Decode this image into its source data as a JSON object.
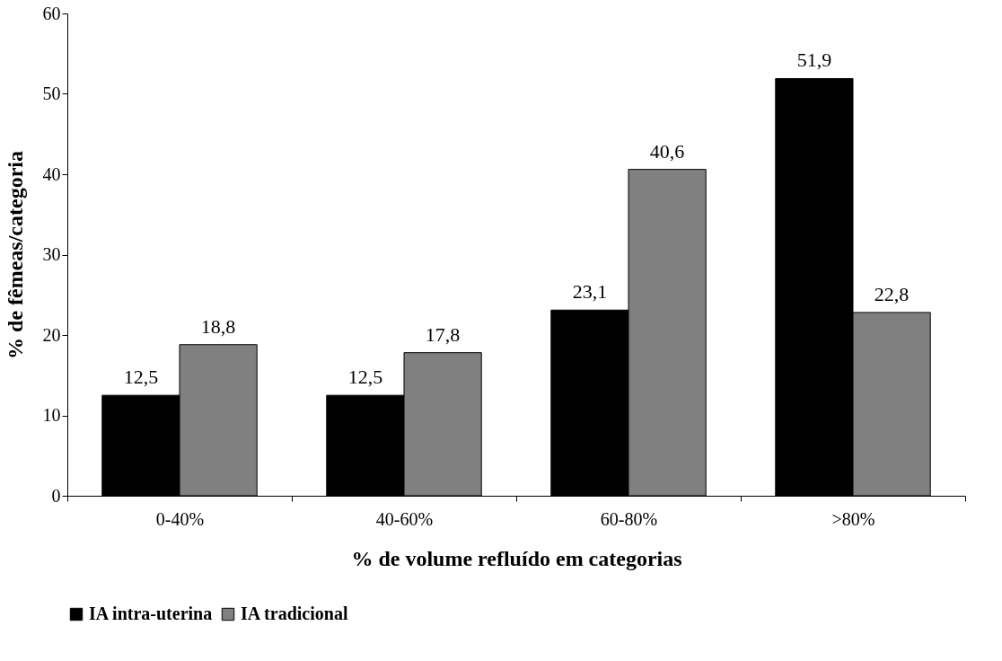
{
  "chart_data": {
    "type": "bar",
    "xlabel": "% de volume refluído em categorias",
    "ylabel": "% de fêmeas/categoria",
    "categories": [
      "0-40%",
      "40-60%",
      "60-80%",
      ">80%"
    ],
    "series": [
      {
        "name": "IA intra-uterina",
        "color": "#000000",
        "values": [
          12.5,
          12.5,
          23.1,
          51.9
        ],
        "value_labels": [
          "12,5",
          "12,5",
          "23,1",
          "51,9"
        ]
      },
      {
        "name": "IA tradicional",
        "color": "#808080",
        "values": [
          18.8,
          17.8,
          40.6,
          22.8
        ],
        "value_labels": [
          "18,8",
          "17,8",
          "40,6",
          "22,8"
        ]
      }
    ],
    "ylim": [
      0,
      60
    ],
    "yticks": [
      0,
      10,
      20,
      30,
      40,
      50,
      60
    ],
    "grid": false,
    "legend": "bottom"
  }
}
